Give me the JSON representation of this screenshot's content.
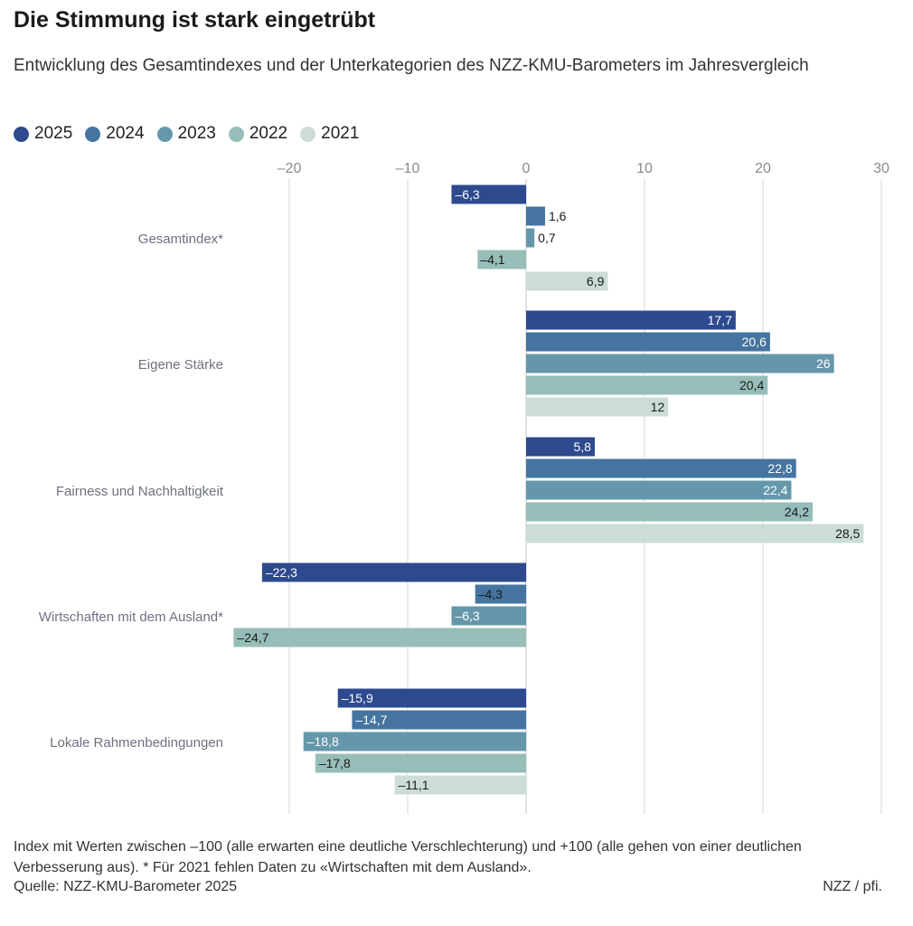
{
  "header": {
    "title": "Die Stimmung ist stark eingetrübt",
    "subtitle": "Entwicklung des Gesamtindexes und der Unterkategorien des NZZ-KMU-Barometers im Jahresvergleich"
  },
  "legend": [
    {
      "label": "2025",
      "color": "#2e4a8e"
    },
    {
      "label": "2024",
      "color": "#44749f"
    },
    {
      "label": "2023",
      "color": "#6597ab"
    },
    {
      "label": "2022",
      "color": "#97bdb9"
    },
    {
      "label": "2021",
      "color": "#ccdcd6"
    }
  ],
  "chart_data": {
    "type": "bar",
    "orientation": "horizontal",
    "categories": [
      "Gesamtindex*",
      "Eigene Stärke",
      "Fairness und Nachhaltigkeit",
      "Wirtschaften mit dem Ausland*",
      "Lokale Rahmenbedingungen"
    ],
    "series": [
      {
        "name": "2025",
        "values": [
          -6.3,
          17.7,
          5.8,
          -22.3,
          -15.9
        ],
        "labels": [
          "–6,3",
          "17,7",
          "5,8",
          "–22,3",
          "–15,9"
        ]
      },
      {
        "name": "2024",
        "values": [
          1.6,
          20.6,
          22.8,
          -4.3,
          -14.7
        ],
        "labels": [
          "1,6",
          "20,6",
          "22,8",
          "–4,3",
          "–14,7"
        ]
      },
      {
        "name": "2023",
        "values": [
          0.7,
          26,
          22.4,
          -6.3,
          -18.8
        ],
        "labels": [
          "0,7",
          "26",
          "22,4",
          "–6,3",
          "–18,8"
        ]
      },
      {
        "name": "2022",
        "values": [
          -4.1,
          20.4,
          24.2,
          -24.7,
          -17.8
        ],
        "labels": [
          "–4,1",
          "20,4",
          "24,2",
          "–24,7",
          "–17,8"
        ]
      },
      {
        "name": "2021",
        "values": [
          6.9,
          12,
          28.5,
          null,
          -11.1
        ],
        "labels": [
          "6,9",
          "12",
          "28,5",
          "",
          "–11,1"
        ]
      }
    ],
    "xlim": [
      -20,
      30
    ],
    "xticks": [
      -20,
      -10,
      0,
      10,
      20,
      30
    ],
    "xtick_labels": [
      "–20",
      "–10",
      "0",
      "10",
      "20",
      "30"
    ],
    "grid": true
  },
  "footer": {
    "note": "Index mit Werten zwischen –100 (alle erwarten eine deutliche Verschlechterung) und +100 (alle gehen von einer deutlichen Verbesserung aus). * Für 2021 fehlen Daten zu «Wirtschaften mit dem Ausland».",
    "source": "Quelle: NZZ-KMU-Barometer 2025",
    "credit": "NZZ / pfi."
  }
}
